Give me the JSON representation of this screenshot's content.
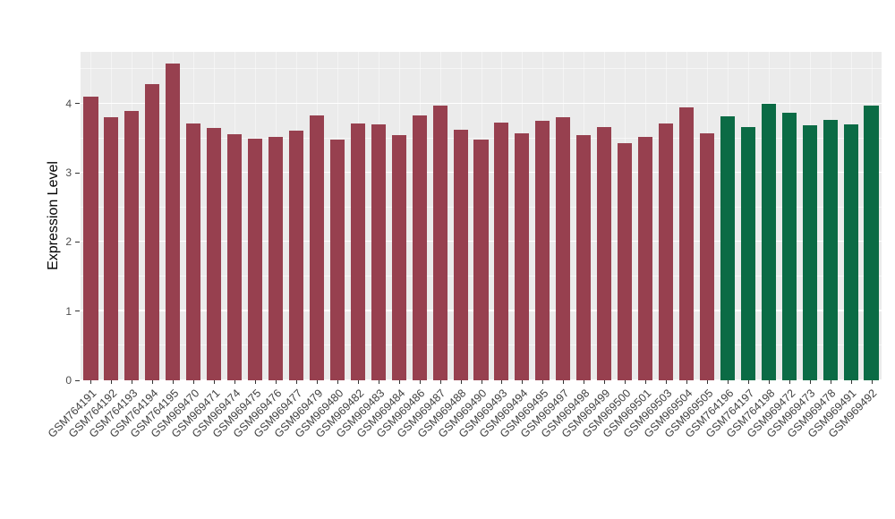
{
  "chart_data": {
    "type": "bar",
    "title": "",
    "xlabel": "",
    "ylabel": "Expression Level",
    "ylim": [
      0,
      4.75
    ],
    "y_ticks": [
      0,
      1,
      2,
      3,
      4
    ],
    "grid": "on",
    "legend": "none",
    "panel_background": "#EBEBEB",
    "gridline_color": "#FFFFFF",
    "group_colors": {
      "maroon": "#97404F",
      "green": "#0B6B45"
    },
    "categories": [
      "GSM764191",
      "GSM764192",
      "GSM764193",
      "GSM764194",
      "GSM764195",
      "GSM969470",
      "GSM969471",
      "GSM969474",
      "GSM969475",
      "GSM969476",
      "GSM969477",
      "GSM969479",
      "GSM969480",
      "GSM969482",
      "GSM969483",
      "GSM969484",
      "GSM969486",
      "GSM969487",
      "GSM969488",
      "GSM969490",
      "GSM969493",
      "GSM969494",
      "GSM969495",
      "GSM969497",
      "GSM969498",
      "GSM969499",
      "GSM969500",
      "GSM969501",
      "GSM969503",
      "GSM969504",
      "GSM969505",
      "GSM764196",
      "GSM764197",
      "GSM764198",
      "GSM969472",
      "GSM969473",
      "GSM969478",
      "GSM969491",
      "GSM969492"
    ],
    "values": [
      4.1,
      3.8,
      3.9,
      4.28,
      4.58,
      3.72,
      3.65,
      3.56,
      3.5,
      3.52,
      3.61,
      3.83,
      3.48,
      3.72,
      3.7,
      3.55,
      3.83,
      3.98,
      3.62,
      3.48,
      3.73,
      3.57,
      3.75,
      3.8,
      3.55,
      3.66,
      3.43,
      3.52,
      3.72,
      3.95,
      3.57,
      3.82,
      3.66,
      4.0,
      3.87,
      3.69,
      3.77,
      3.7,
      3.98
    ],
    "bar_groups": [
      "maroon",
      "maroon",
      "maroon",
      "maroon",
      "maroon",
      "maroon",
      "maroon",
      "maroon",
      "maroon",
      "maroon",
      "maroon",
      "maroon",
      "maroon",
      "maroon",
      "maroon",
      "maroon",
      "maroon",
      "maroon",
      "maroon",
      "maroon",
      "maroon",
      "maroon",
      "maroon",
      "maroon",
      "maroon",
      "maroon",
      "maroon",
      "maroon",
      "maroon",
      "maroon",
      "maroon",
      "green",
      "green",
      "green",
      "green",
      "green",
      "green",
      "green",
      "green"
    ]
  }
}
